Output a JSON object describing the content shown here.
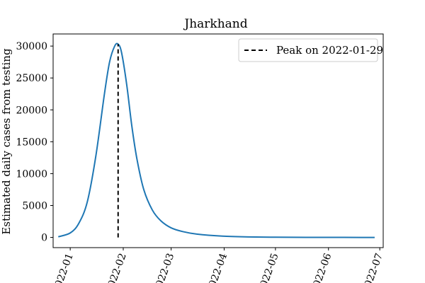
{
  "chart_data": {
    "type": "line",
    "title": "Jharkhand",
    "xlabel": "",
    "ylabel": "Estimated daily cases from testing",
    "x_tick_labels": [
      "2022-01",
      "2022-02",
      "2022-03",
      "2022-04",
      "2022-05",
      "2022-06",
      "2022-07"
    ],
    "x_ticks": [
      "2022-01-01",
      "2022-02-01",
      "2022-03-01",
      "2022-04-01",
      "2022-05-01",
      "2022-06-01",
      "2022-07-01"
    ],
    "xlim": [
      "2021-12-22",
      "2022-07-03"
    ],
    "y_ticks": [
      0,
      5000,
      10000,
      15000,
      20000,
      25000,
      30000
    ],
    "ylim": [
      -1600,
      31900
    ],
    "series": [
      {
        "name": "",
        "color": "#1f77b4",
        "style": "solid",
        "x": [
          "2021-12-25",
          "2022-01-01",
          "2022-01-06",
          "2022-01-11",
          "2022-01-16",
          "2022-01-21",
          "2022-01-24",
          "2022-01-27",
          "2022-01-29",
          "2022-01-31",
          "2022-02-03",
          "2022-02-06",
          "2022-02-09",
          "2022-02-13",
          "2022-02-18",
          "2022-02-23",
          "2022-03-01",
          "2022-03-08",
          "2022-03-16",
          "2022-03-31",
          "2022-04-15",
          "2022-05-01",
          "2022-06-01",
          "2022-06-28"
        ],
        "y": [
          100,
          700,
          2200,
          5600,
          12800,
          22500,
          27500,
          30000,
          30300,
          29000,
          24000,
          17500,
          12300,
          7500,
          4300,
          2600,
          1500,
          900,
          520,
          200,
          80,
          30,
          5,
          0
        ]
      }
    ],
    "peak_marker": {
      "label": "Peak on 2022-01-29",
      "date": "2022-01-29",
      "value": 30300,
      "color": "#000000",
      "style": "dashed"
    },
    "legend": {
      "position": "top-right",
      "entries": [
        "Peak on 2022-01-29"
      ]
    },
    "grid": false
  }
}
